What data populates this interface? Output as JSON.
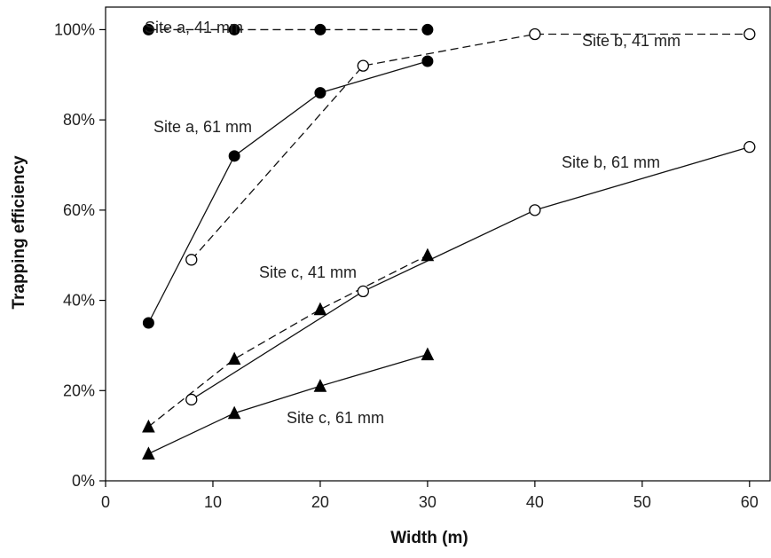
{
  "chart_data": {
    "type": "line",
    "title": "",
    "xlabel": "Width (m)",
    "ylabel": "Trapping efficiency",
    "xlim": [
      0,
      62
    ],
    "ylim": [
      0,
      1.05
    ],
    "x_ticks": [
      0,
      10,
      20,
      30,
      40,
      50,
      60
    ],
    "y_ticks": [
      0,
      0.2,
      0.4,
      0.6,
      0.8,
      1.0
    ],
    "x_tick_labels": [
      "0",
      "10",
      "20",
      "30",
      "40",
      "50",
      "60"
    ],
    "y_tick_labels": [
      "0%",
      "20%",
      "40%",
      "60%",
      "80%",
      "100%"
    ],
    "grid": false,
    "legend": "none (direct labels)",
    "series": [
      {
        "name": "Site a, 41 mm",
        "marker": "filled-circle",
        "line": "dashed",
        "x": [
          4,
          12,
          20,
          30
        ],
        "y": [
          1.0,
          1.0,
          1.0,
          1.0
        ]
      },
      {
        "name": "Site a, 61 mm",
        "marker": "filled-circle",
        "line": "solid",
        "x": [
          4,
          12,
          20,
          30
        ],
        "y": [
          0.35,
          0.72,
          0.86,
          0.93
        ]
      },
      {
        "name": "Site b, 41 mm",
        "marker": "open-circle",
        "line": "dashed",
        "x": [
          8,
          24,
          40,
          60
        ],
        "y": [
          0.49,
          0.92,
          0.99,
          0.99
        ]
      },
      {
        "name": "Site b, 61 mm",
        "marker": "open-circle",
        "line": "solid",
        "x": [
          8,
          24,
          40,
          60
        ],
        "y": [
          0.18,
          0.42,
          0.6,
          0.74
        ]
      },
      {
        "name": "Site c, 41 mm",
        "marker": "filled-triangle",
        "line": "dashed",
        "x": [
          4,
          12,
          20,
          30
        ],
        "y": [
          0.12,
          0.27,
          0.38,
          0.5
        ]
      },
      {
        "name": "Site c, 61 mm",
        "marker": "filled-triangle",
        "line": "solid",
        "x": [
          4,
          12,
          20,
          30
        ],
        "y": [
          0.06,
          0.15,
          0.21,
          0.28
        ]
      }
    ]
  }
}
